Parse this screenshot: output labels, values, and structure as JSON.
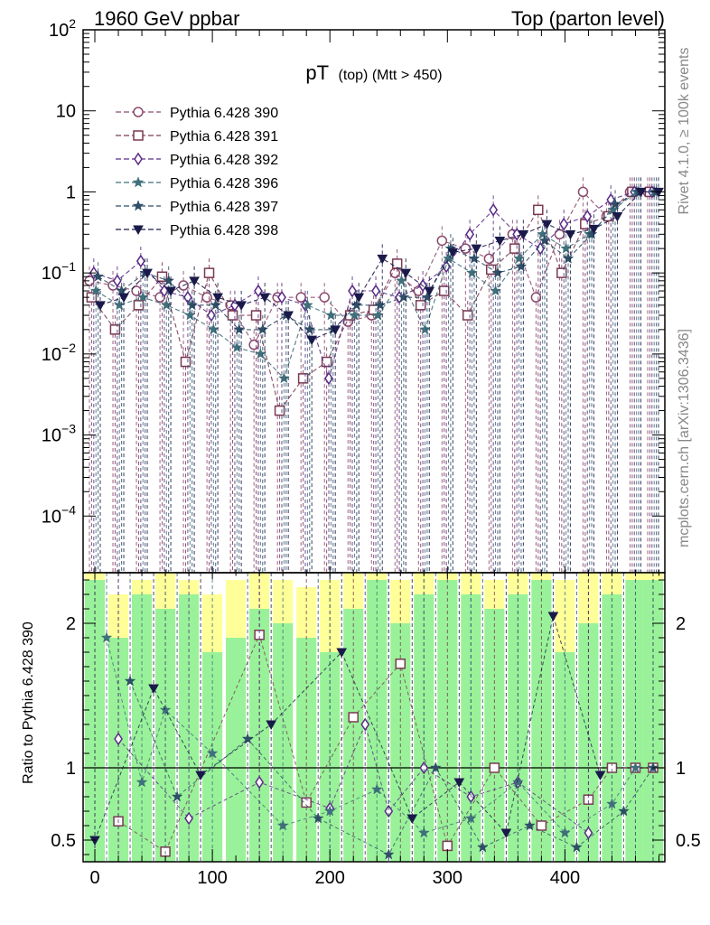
{
  "header": {
    "left": "1960 GeV ppbar",
    "right": "Top (parton level)"
  },
  "side_labels": {
    "rivet": "Rivet 4.1.0, ≥ 100k events",
    "mcplots": "mcplots.cern.ch [arXiv:1306.3436]"
  },
  "chart_data": [
    {
      "type": "line",
      "panel": "main",
      "title_main": "pT",
      "title_sub": "(top) (Mtt > 450)",
      "xlabel": "",
      "ylabel": "",
      "yscale": "log",
      "xlim": [
        -10,
        485
      ],
      "ylim": [
        2e-05,
        100
      ],
      "ytick_labels": [
        "10",
        "1"
      ],
      "ytick_values": [
        10,
        1
      ],
      "ytick_pow": [
        {
          "base": "10",
          "exp": "2",
          "value": 100
        },
        {
          "base": "10",
          "exp": "−1",
          "value": 0.1
        },
        {
          "base": "10",
          "exp": "−2",
          "value": 0.01
        },
        {
          "base": "10",
          "exp": "−3",
          "value": 0.001
        },
        {
          "base": "10",
          "exp": "−4",
          "value": 0.0001
        }
      ],
      "legend_position": "top-left",
      "series": [
        {
          "name": "Pythia 6.428 390",
          "marker": "circle-open",
          "color": "#8a4a6e",
          "x": [
            0,
            20,
            40,
            60,
            80,
            100,
            120,
            140,
            160,
            180,
            200,
            220,
            240,
            260,
            280,
            300,
            320,
            340,
            360,
            380,
            400,
            420,
            440,
            460,
            475
          ],
          "y": [
            0.08,
            0.07,
            0.06,
            0.05,
            0.07,
            0.05,
            0.04,
            0.013,
            0.05,
            0.05,
            0.05,
            0.025,
            0.03,
            0.1,
            0.06,
            0.25,
            0.2,
            0.15,
            0.3,
            0.05,
            0.3,
            1.0,
            0.5,
            1.0,
            1.0
          ]
        },
        {
          "name": "Pythia 6.428 391",
          "marker": "square-open",
          "color": "#7a3a52",
          "x": [
            0,
            20,
            40,
            60,
            80,
            100,
            120,
            140,
            160,
            180,
            200,
            220,
            240,
            260,
            280,
            300,
            320,
            340,
            360,
            380,
            400,
            420,
            440,
            460,
            475
          ],
          "y": [
            0.05,
            0.02,
            0.04,
            0.09,
            0.008,
            0.1,
            0.03,
            0.03,
            0.002,
            0.005,
            0.008,
            0.03,
            0.035,
            0.13,
            0.04,
            0.06,
            0.03,
            0.11,
            0.2,
            0.6,
            0.1,
            0.4,
            0.5,
            1.0,
            1.0
          ]
        },
        {
          "name": "Pythia 6.428 392",
          "marker": "diamond-open",
          "color": "#5a2a86",
          "x": [
            0,
            20,
            40,
            60,
            80,
            100,
            120,
            140,
            160,
            180,
            200,
            220,
            240,
            260,
            280,
            300,
            320,
            340,
            360,
            380,
            400,
            420,
            440,
            460,
            475
          ],
          "y": [
            0.1,
            0.08,
            0.14,
            0.06,
            0.05,
            0.03,
            0.04,
            0.06,
            0.05,
            0.04,
            0.005,
            0.06,
            0.06,
            0.05,
            0.07,
            0.12,
            0.3,
            0.6,
            0.3,
            0.2,
            0.4,
            0.5,
            0.8,
            1.0,
            1.0
          ]
        },
        {
          "name": "Pythia 6.428 396",
          "marker": "star",
          "color": "#3f6f7a",
          "x": [
            0,
            20,
            40,
            60,
            80,
            100,
            120,
            140,
            160,
            180,
            200,
            220,
            240,
            260,
            280,
            300,
            320,
            340,
            360,
            380,
            400,
            420,
            440,
            460,
            475
          ],
          "y": [
            0.06,
            0.04,
            0.05,
            0.04,
            0.03,
            0.02,
            0.012,
            0.01,
            0.005,
            0.04,
            0.03,
            0.03,
            0.03,
            0.08,
            0.02,
            0.15,
            0.1,
            0.06,
            0.15,
            0.3,
            0.2,
            0.3,
            0.6,
            1.0,
            1.0
          ]
        },
        {
          "name": "Pythia 6.428 397",
          "marker": "star",
          "color": "#2e4f66",
          "x": [
            0,
            20,
            40,
            60,
            80,
            100,
            120,
            140,
            160,
            180,
            200,
            220,
            240,
            260,
            280,
            300,
            320,
            340,
            360,
            380,
            400,
            420,
            440,
            460,
            475
          ],
          "y": [
            0.09,
            0.06,
            0.1,
            0.08,
            0.04,
            0.04,
            0.02,
            0.02,
            0.03,
            0.02,
            0.02,
            0.04,
            0.04,
            0.05,
            0.05,
            0.2,
            0.15,
            0.1,
            0.12,
            0.25,
            0.15,
            0.3,
            0.7,
            1.0,
            1.0
          ]
        },
        {
          "name": "Pythia 6.428 398",
          "marker": "triangle-down",
          "color": "#1a1a4a",
          "x": [
            0,
            20,
            40,
            60,
            80,
            100,
            120,
            140,
            160,
            180,
            200,
            220,
            240,
            260,
            280,
            300,
            320,
            340,
            360,
            380,
            400,
            420,
            440,
            460,
            475
          ],
          "y": [
            0.04,
            0.05,
            0.1,
            0.06,
            0.08,
            0.05,
            0.04,
            0.05,
            0.03,
            0.015,
            0.02,
            0.05,
            0.15,
            0.1,
            0.06,
            0.18,
            0.2,
            0.25,
            0.3,
            0.4,
            0.3,
            0.35,
            0.5,
            1.0,
            1.0
          ]
        }
      ]
    },
    {
      "type": "line",
      "panel": "ratio",
      "ylabel": "Ratio to Pythia 6.428 390",
      "xlim": [
        -10,
        485
      ],
      "ylim": [
        0.35,
        2.35
      ],
      "xtick_labels": [
        "0",
        "100",
        "200",
        "300",
        "400"
      ],
      "xtick_values": [
        0,
        100,
        200,
        300,
        400
      ],
      "ytick_labels": [
        "0.5",
        "1",
        "2"
      ],
      "ytick_values": [
        0.5,
        1,
        2
      ],
      "band_colors": {
        "inner": "#99f299",
        "outer": "#ffff99"
      },
      "bands": {
        "x": [
          0,
          20,
          40,
          60,
          80,
          100,
          120,
          140,
          160,
          180,
          200,
          220,
          240,
          260,
          280,
          300,
          320,
          340,
          360,
          380,
          400,
          420,
          440,
          460,
          475
        ],
        "inner_hi": [
          2.3,
          1.9,
          2.2,
          2.1,
          2.2,
          1.8,
          1.9,
          2.1,
          2.0,
          1.9,
          1.8,
          2.1,
          2.3,
          2.0,
          2.2,
          2.3,
          2.2,
          2.1,
          2.2,
          2.3,
          1.8,
          2.0,
          2.2,
          2.3,
          2.3
        ],
        "outer_hi": [
          2.35,
          2.2,
          2.3,
          2.35,
          2.3,
          2.2,
          2.3,
          2.35,
          2.3,
          2.25,
          2.3,
          2.35,
          2.35,
          2.3,
          2.35,
          2.35,
          2.35,
          2.3,
          2.35,
          2.35,
          2.3,
          2.35,
          2.35,
          2.35,
          2.35
        ]
      },
      "series": [
        {
          "name": "Pythia 6.428 391",
          "marker": "square-open",
          "color": "#7a3a52",
          "x": [
            20,
            60,
            140,
            180,
            220,
            260,
            300,
            340,
            380,
            420,
            440,
            460,
            475
          ],
          "y": [
            0.63,
            0.42,
            1.92,
            0.76,
            1.35,
            1.72,
            0.46,
            1.0,
            0.6,
            0.78,
            1.0,
            1.0,
            1.0
          ]
        },
        {
          "name": "Pythia 6.428 392",
          "marker": "diamond-open",
          "color": "#5a2a86",
          "x": [
            20,
            80,
            140,
            200,
            230,
            250,
            280,
            320,
            360,
            420
          ],
          "y": [
            1.2,
            0.65,
            0.9,
            0.72,
            1.3,
            0.7,
            1.0,
            0.8,
            0.9,
            0.55
          ]
        },
        {
          "name": "Pythia 6.428 396",
          "marker": "star",
          "color": "#3f6f7a",
          "x": [
            10,
            40,
            60,
            100,
            160,
            200,
            240,
            280,
            320,
            360,
            400,
            440,
            460
          ],
          "y": [
            1.9,
            0.9,
            1.4,
            1.1,
            0.6,
            0.7,
            0.85,
            0.55,
            0.65,
            0.9,
            0.55,
            0.75,
            1.0
          ]
        },
        {
          "name": "Pythia 6.428 397",
          "marker": "star",
          "color": "#2e4f66",
          "x": [
            30,
            70,
            130,
            190,
            250,
            290,
            330,
            370,
            410,
            450,
            475
          ],
          "y": [
            1.6,
            0.8,
            1.2,
            0.65,
            0.4,
            1.0,
            0.45,
            0.6,
            0.45,
            0.7,
            1.0
          ]
        },
        {
          "name": "Pythia 6.428 398",
          "marker": "triangle-down",
          "color": "#1a1a4a",
          "x": [
            0,
            50,
            90,
            150,
            210,
            270,
            310,
            350,
            390,
            430
          ],
          "y": [
            0.5,
            1.55,
            0.95,
            1.3,
            1.8,
            0.65,
            0.9,
            0.55,
            2.05,
            0.95
          ]
        }
      ]
    }
  ]
}
